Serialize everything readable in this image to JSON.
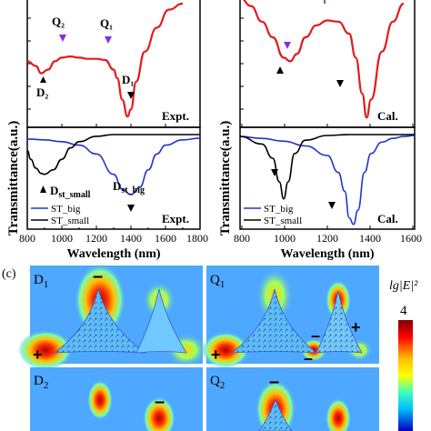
{
  "figure": {
    "y_axis_label": "Transmittance(a.u.)",
    "x_axis_label": "Wavelength (nm)",
    "x_ticks": [
      "800",
      "1000",
      "1200",
      "1400",
      "1600",
      "1800"
    ],
    "x_ticks_right": [
      "800",
      "1000",
      "1200",
      "1400",
      "1600"
    ],
    "panel_c_label": "(c)",
    "colorbar_label": "lg|E|²",
    "colorbar_value": "4"
  },
  "panels": {
    "left_top": {
      "tag": "Expt.",
      "markers": {
        "Q2": "Q₂",
        "Q1": "Q₁",
        "D2": "D₂",
        "D1": "D₁"
      }
    },
    "right_top": {
      "tag": "Cal."
    },
    "left_bottom": {
      "tag": "Expt.",
      "markers": {
        "Dst_small": "D",
        "Dst_small_sub": "st_small",
        "Dst_big": "D",
        "Dst_big_sub": "st_big"
      },
      "legend": [
        "ST_big",
        "ST_small"
      ]
    },
    "right_bottom": {
      "tag": "Cal.",
      "legend": [
        "ST_big",
        "ST_small"
      ]
    }
  },
  "field_maps": [
    {
      "label": "D",
      "sub": "1"
    },
    {
      "label": "Q",
      "sub": "1"
    },
    {
      "label": "D",
      "sub": "2"
    },
    {
      "label": "Q",
      "sub": "2"
    }
  ],
  "chart_data": [
    {
      "type": "line",
      "panel": "left_top",
      "ylabel": "Transmittance(a.u.)",
      "xlim": [
        800,
        1800
      ],
      "series": [
        {
          "color": "#e31a1c",
          "x": [
            800,
            850,
            880,
            920,
            960,
            1000,
            1050,
            1100,
            1150,
            1200,
            1250,
            1300,
            1320,
            1350,
            1380,
            1400,
            1430,
            1480,
            1550,
            1620,
            1700
          ],
          "y": [
            0.52,
            0.48,
            0.42,
            0.45,
            0.52,
            0.55,
            0.56,
            0.55,
            0.54,
            0.54,
            0.53,
            0.45,
            0.38,
            0.2,
            0.06,
            0.12,
            0.35,
            0.6,
            0.8,
            0.95,
            1.0
          ]
        }
      ],
      "annotations": [
        "Q₂",
        "Q₁",
        "D₂",
        "D₁",
        "Expt."
      ]
    },
    {
      "type": "line",
      "panel": "right_top",
      "xlim": [
        800,
        1600
      ],
      "series": [
        {
          "color": "#e31a1c",
          "x": [
            800,
            850,
            900,
            950,
            1000,
            1030,
            1060,
            1100,
            1150,
            1200,
            1250,
            1300,
            1330,
            1360,
            1380,
            1400,
            1450,
            1500,
            1550
          ],
          "y": [
            1.05,
            0.98,
            0.85,
            0.72,
            0.55,
            0.52,
            0.58,
            0.72,
            0.82,
            0.86,
            0.85,
            0.75,
            0.55,
            0.25,
            0.05,
            0.2,
            0.6,
            0.85,
            1.0
          ]
        }
      ],
      "annotations": [
        "Cal."
      ]
    },
    {
      "type": "line",
      "panel": "left_bottom",
      "ylabel": "Transmittance(a.u.)",
      "xlabel": "Wavelength (nm)",
      "xlim": [
        800,
        1800
      ],
      "series": [
        {
          "name": "ST_big",
          "color": "#2233cc",
          "x": [
            800,
            900,
            1000,
            1100,
            1200,
            1300,
            1350,
            1400,
            1450,
            1500,
            1550,
            1600,
            1700,
            1800
          ],
          "y": [
            0.95,
            0.94,
            0.92,
            0.88,
            0.78,
            0.55,
            0.38,
            0.32,
            0.4,
            0.6,
            0.78,
            0.88,
            0.94,
            0.96
          ]
        },
        {
          "name": "ST_small",
          "color": "#000000",
          "x": [
            800,
            820,
            850,
            880,
            900,
            950,
            1000,
            1050,
            1100,
            1200,
            1300,
            1400,
            1500,
            1600,
            1700,
            1800
          ],
          "y": [
            0.82,
            0.72,
            0.62,
            0.56,
            0.55,
            0.6,
            0.72,
            0.85,
            0.92,
            0.98,
            1.0,
            1.0,
            1.0,
            1.0,
            1.0,
            1.0
          ]
        }
      ],
      "annotations": [
        "Dst_small",
        "Dst_big",
        "Expt."
      ]
    },
    {
      "type": "line",
      "panel": "right_bottom",
      "xlabel": "Wavelength (nm)",
      "xlim": [
        800,
        1600
      ],
      "series": [
        {
          "name": "ST_big",
          "color": "#2233cc",
          "x": [
            800,
            900,
            1000,
            1100,
            1200,
            1250,
            1280,
            1300,
            1320,
            1340,
            1370,
            1400,
            1450,
            1500,
            1550,
            1600
          ],
          "y": [
            0.98,
            0.96,
            0.93,
            0.88,
            0.78,
            0.6,
            0.4,
            0.12,
            0.05,
            0.2,
            0.6,
            0.8,
            0.92,
            0.96,
            0.98,
            0.99
          ]
        },
        {
          "name": "ST_small",
          "color": "#000000",
          "x": [
            800,
            900,
            950,
            980,
            1000,
            1020,
            1050,
            1100,
            1200,
            1300,
            1400,
            1500,
            1600
          ],
          "y": [
            0.98,
            0.9,
            0.75,
            0.5,
            0.32,
            0.5,
            0.8,
            0.94,
            0.99,
            1.0,
            1.0,
            1.0,
            1.0
          ]
        }
      ],
      "annotations": [
        "Cal."
      ]
    }
  ]
}
